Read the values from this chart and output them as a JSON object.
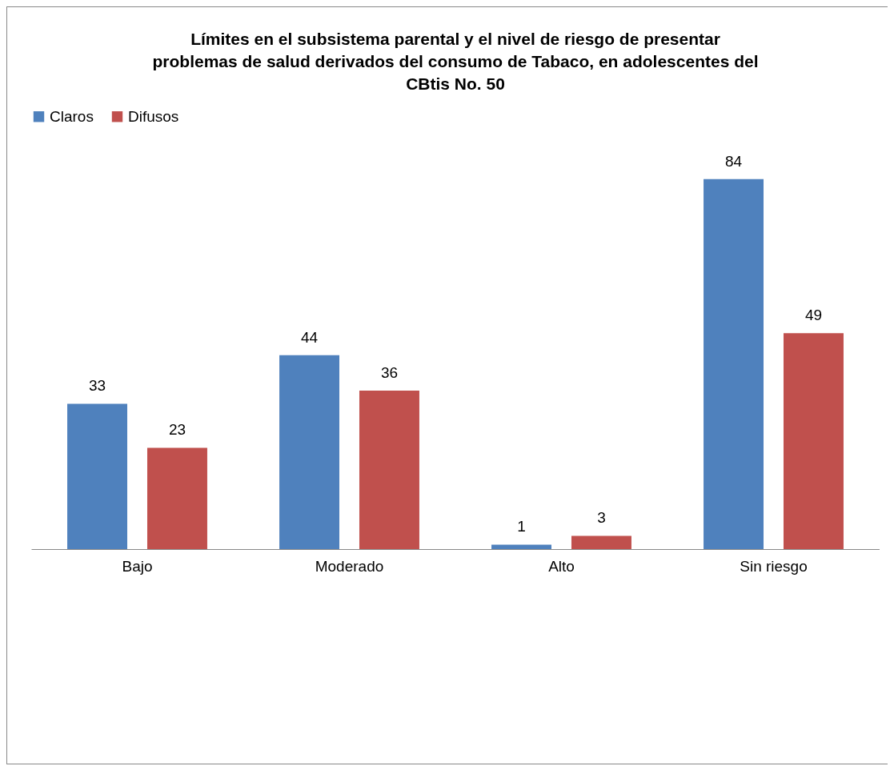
{
  "chart_data": {
    "type": "bar",
    "title": "Límites en el subsistema parental   y el nivel de  riesgo de presentar problemas de salud derivados del consumo de Tabaco,  en adolescentes del CBtis No. 50",
    "categories": [
      "Bajo",
      "Moderado",
      "Alto",
      "Sin riesgo"
    ],
    "series": [
      {
        "name": "Claros",
        "color": "#4f81bd",
        "values": [
          33,
          44,
          1,
          84
        ]
      },
      {
        "name": "Difusos",
        "color": "#c0504d",
        "values": [
          23,
          36,
          3,
          49
        ]
      }
    ],
    "data_labels": true,
    "legend": "top",
    "tick_labels": "x",
    "grid": false
  }
}
